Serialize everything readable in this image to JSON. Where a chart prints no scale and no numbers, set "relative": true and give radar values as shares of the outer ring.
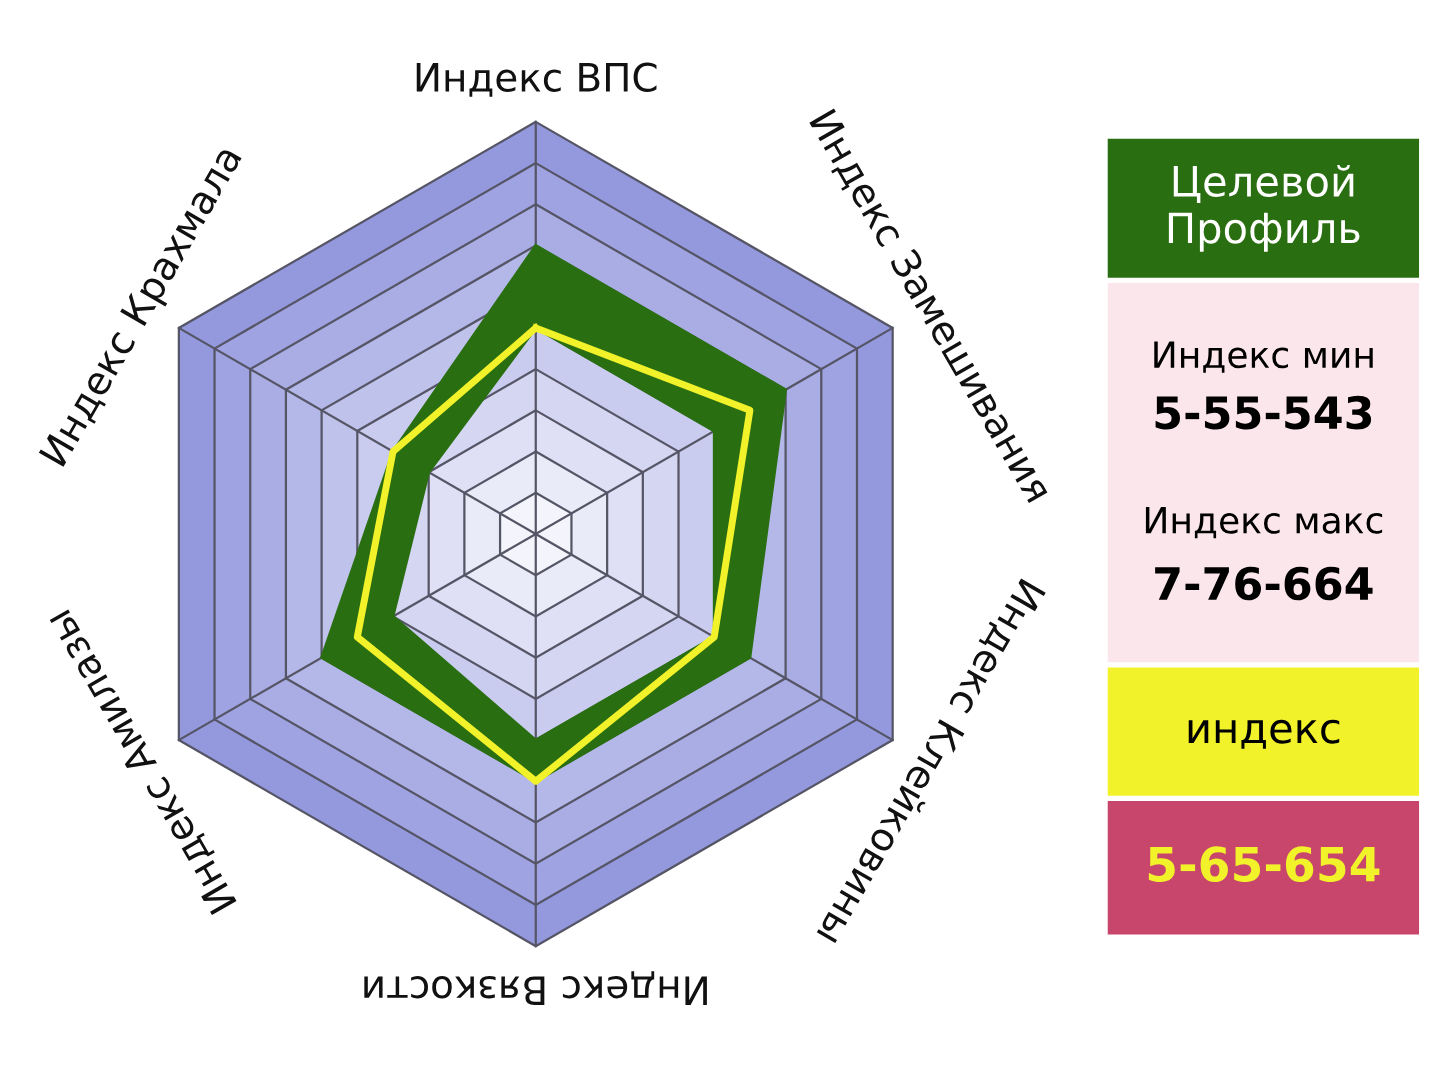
{
  "chart_data": {
    "type": "radar",
    "relative": true,
    "grid": true,
    "legend": "right",
    "categories": [
      "Индекс ВПС",
      "Индекс Замешивания",
      "Индекс Клейковины",
      "Индекс Вязкости",
      "Индекс Амилазы",
      "Индекс Крахмала"
    ],
    "series": [
      {
        "name": "Целевой Профиль",
        "type": "area",
        "color": "#2a6e12",
        "values": [
          0.7,
          0.7,
          0.6,
          0.6,
          0.6,
          0.4
        ]
      },
      {
        "type": "area",
        "color": "#2a6e12",
        "values": [
          0.5,
          0.5,
          0.5,
          0.5,
          0.4,
          0.3
        ]
      },
      {
        "name": "индекс",
        "color": "#f2f22a",
        "values": [
          0.5,
          0.6,
          0.5,
          0.6,
          0.5,
          0.4
        ]
      }
    ],
    "annotations": [
      "Индекс мин",
      "5-55-543",
      "Индекс макс",
      "7-76-664",
      "5-65-654"
    ]
  }
}
